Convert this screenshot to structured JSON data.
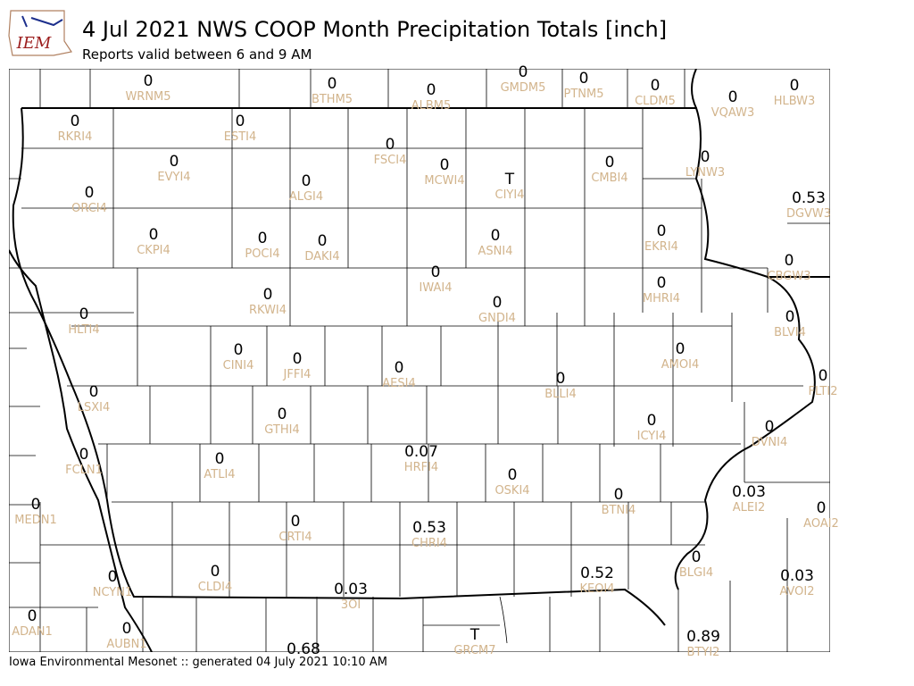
{
  "header": {
    "logo": "IEM",
    "title": "4 Jul 2021 NWS COOP Month Precipitation Totals [inch]",
    "subtitle": "Reports valid between 6 and 9 AM"
  },
  "stations": [
    {
      "value": "0",
      "id": "WRNM5"
    },
    {
      "value": "0",
      "id": "BTHM5"
    },
    {
      "value": "0",
      "id": "ALBM5"
    },
    {
      "value": "0",
      "id": "GMDM5"
    },
    {
      "value": "0",
      "id": "PTNM5"
    },
    {
      "value": "0",
      "id": "CLDM5"
    },
    {
      "value": "0",
      "id": "VQAW3"
    },
    {
      "value": "0",
      "id": "HLBW3"
    },
    {
      "value": "0",
      "id": "RKRI4"
    },
    {
      "value": "0",
      "id": "ESTI4"
    },
    {
      "value": "0",
      "id": "FSCI4"
    },
    {
      "value": "0",
      "id": "MCWI4"
    },
    {
      "value": "T",
      "id": "CIYI4"
    },
    {
      "value": "0",
      "id": "CMBI4"
    },
    {
      "value": "0",
      "id": "LYNW3"
    },
    {
      "value": "0",
      "id": "EVYI4"
    },
    {
      "value": "0",
      "id": "ALGI4"
    },
    {
      "value": "0",
      "id": "ORCI4"
    },
    {
      "value": "0.53",
      "id": "DGVW3"
    },
    {
      "value": "0",
      "id": "CKPI4"
    },
    {
      "value": "0",
      "id": "POCI4"
    },
    {
      "value": "0",
      "id": "DAKI4"
    },
    {
      "value": "0",
      "id": "ASNI4"
    },
    {
      "value": "0",
      "id": "EKRI4"
    },
    {
      "value": "0",
      "id": "CBGW3"
    },
    {
      "value": "0",
      "id": "IWAI4"
    },
    {
      "value": "0",
      "id": "RKWI4"
    },
    {
      "value": "0",
      "id": "MHRI4"
    },
    {
      "value": "0",
      "id": "GNDI4"
    },
    {
      "value": "0",
      "id": "HLTI4"
    },
    {
      "value": "0",
      "id": "BLVI4"
    },
    {
      "value": "0",
      "id": "CINI4"
    },
    {
      "value": "0",
      "id": "JFFI4"
    },
    {
      "value": "0",
      "id": "AMOI4"
    },
    {
      "value": "0",
      "id": "AESI4"
    },
    {
      "value": "0",
      "id": "BLLI4"
    },
    {
      "value": "0",
      "id": "FLTI2"
    },
    {
      "value": "0",
      "id": "LSXI4"
    },
    {
      "value": "0",
      "id": "GTHI4"
    },
    {
      "value": "0",
      "id": "ICYI4"
    },
    {
      "value": "0",
      "id": "DVNI4"
    },
    {
      "value": "0.07",
      "id": "HRFI4"
    },
    {
      "value": "0",
      "id": "FCLN1"
    },
    {
      "value": "0",
      "id": "ATLI4"
    },
    {
      "value": "0",
      "id": "OSKI4"
    },
    {
      "value": "0.03",
      "id": "ALEI2"
    },
    {
      "value": "0",
      "id": "MEDN1"
    },
    {
      "value": "0",
      "id": "BTNI4"
    },
    {
      "value": "0",
      "id": "AOAI2"
    },
    {
      "value": "0",
      "id": "CRTI4"
    },
    {
      "value": "0.53",
      "id": "CHRI4"
    },
    {
      "value": "0",
      "id": "BLGI4"
    },
    {
      "value": "0",
      "id": "CLDI4"
    },
    {
      "value": "0",
      "id": "NCYN1"
    },
    {
      "value": "0.52",
      "id": "KEOI4"
    },
    {
      "value": "0.03",
      "id": "AVOI2"
    },
    {
      "value": "0.03",
      "id": "3OI"
    },
    {
      "value": "0",
      "id": "ADAN1"
    },
    {
      "value": "0",
      "id": "AUBN1"
    },
    {
      "value": "T",
      "id": "GRCM7"
    },
    {
      "value": "0.89",
      "id": "BTYI2"
    },
    {
      "value": "0.68"
    }
  ],
  "footer": "Iowa Environmental Mesonet :: generated 04 July 2021 10:10 AM"
}
